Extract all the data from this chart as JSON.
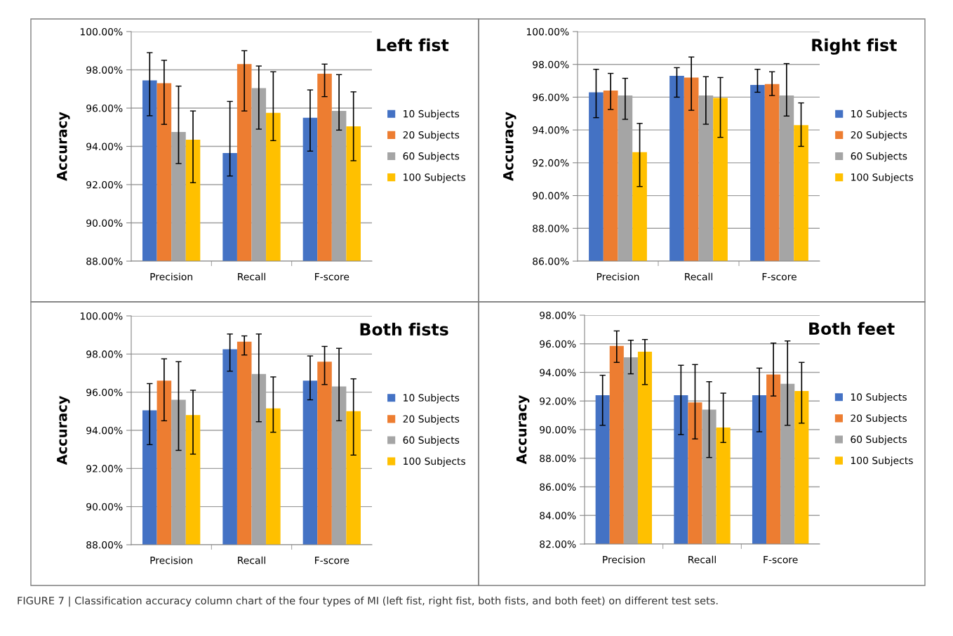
{
  "chart_data": [
    {
      "type": "bar",
      "title": "Left fist",
      "ylabel": "Accuracy",
      "categories": [
        "Precision",
        "Recall",
        "F-score"
      ],
      "ylim": [
        88,
        100
      ],
      "yticks": [
        {
          "value": 88,
          "label": "88.00%"
        },
        {
          "value": 90,
          "label": "90.00%"
        },
        {
          "value": 92,
          "label": "92.00%"
        },
        {
          "value": 94,
          "label": "94.00%"
        },
        {
          "value": 96,
          "label": "96.00%"
        },
        {
          "value": 98,
          "label": "98.00%"
        },
        {
          "value": 100,
          "label": "100.00%"
        }
      ],
      "grid": "y",
      "legend": "right",
      "series": [
        {
          "name": "10 Subjects",
          "color": "#4472c4",
          "values": [
            97.45,
            93.65,
            95.5
          ],
          "errors": [
            [
              95.6,
              98.9
            ],
            [
              92.45,
              96.35
            ],
            [
              93.75,
              96.95
            ]
          ]
        },
        {
          "name": "20 Subjects",
          "color": "#ed7d31",
          "values": [
            97.3,
            98.3,
            97.8
          ],
          "errors": [
            [
              95.15,
              98.5
            ],
            [
              95.85,
              99.0
            ],
            [
              96.6,
              98.3
            ]
          ]
        },
        {
          "name": "60 Subjects",
          "color": "#a5a5a5",
          "values": [
            94.75,
            97.05,
            95.85
          ],
          "errors": [
            [
              93.1,
              97.15
            ],
            [
              94.9,
              98.2
            ],
            [
              94.85,
              97.75
            ]
          ]
        },
        {
          "name": "100 Subjects",
          "color": "#ffc000",
          "values": [
            94.35,
            95.75,
            95.05
          ],
          "errors": [
            [
              92.1,
              95.85
            ],
            [
              94.3,
              97.9
            ],
            [
              93.25,
              96.85
            ]
          ]
        }
      ]
    },
    {
      "type": "bar",
      "title": "Right fist",
      "ylabel": "Accuracy",
      "categories": [
        "Precision",
        "Recall",
        "F-score"
      ],
      "ylim": [
        86,
        100
      ],
      "yticks": [
        {
          "value": 86,
          "label": "86.00%"
        },
        {
          "value": 88,
          "label": "88.00%"
        },
        {
          "value": 90,
          "label": "90.00%"
        },
        {
          "value": 92,
          "label": "92.00%"
        },
        {
          "value": 94,
          "label": "94.00%"
        },
        {
          "value": 96,
          "label": "96.00%"
        },
        {
          "value": 98,
          "label": "98.00%"
        },
        {
          "value": 100,
          "label": "100.00%"
        }
      ],
      "grid": "y",
      "legend": "right",
      "series": [
        {
          "name": "10 Subjects",
          "color": "#4472c4",
          "values": [
            96.3,
            97.3,
            96.75
          ],
          "errors": [
            [
              94.75,
              97.7
            ],
            [
              96.0,
              97.8
            ],
            [
              96.3,
              97.7
            ]
          ]
        },
        {
          "name": "20 Subjects",
          "color": "#ed7d31",
          "values": [
            96.4,
            97.2,
            96.8
          ],
          "errors": [
            [
              95.25,
              97.45
            ],
            [
              95.2,
              98.45
            ],
            [
              96.1,
              97.55
            ]
          ]
        },
        {
          "name": "60 Subjects",
          "color": "#a5a5a5",
          "values": [
            96.1,
            96.1,
            96.1
          ],
          "errors": [
            [
              94.65,
              97.15
            ],
            [
              94.35,
              97.25
            ],
            [
              94.85,
              98.05
            ]
          ]
        },
        {
          "name": "100 Subjects",
          "color": "#ffc000",
          "values": [
            92.65,
            95.95,
            94.3
          ],
          "errors": [
            [
              90.55,
              94.4
            ],
            [
              93.55,
              97.2
            ],
            [
              93.0,
              95.65
            ]
          ]
        }
      ]
    },
    {
      "type": "bar",
      "title": "Both fists",
      "ylabel": "Accuracy",
      "categories": [
        "Precision",
        "Recall",
        "F-score"
      ],
      "ylim": [
        88,
        100
      ],
      "yticks": [
        {
          "value": 88,
          "label": "88.00%"
        },
        {
          "value": 90,
          "label": "90.00%"
        },
        {
          "value": 92,
          "label": "92.00%"
        },
        {
          "value": 94,
          "label": "94.00%"
        },
        {
          "value": 96,
          "label": "96.00%"
        },
        {
          "value": 98,
          "label": "98.00%"
        },
        {
          "value": 100,
          "label": "100.00%"
        }
      ],
      "grid": "y",
      "legend": "right",
      "series": [
        {
          "name": "10 Subjects",
          "color": "#4472c4",
          "values": [
            95.05,
            98.25,
            96.6
          ],
          "errors": [
            [
              93.25,
              96.45
            ],
            [
              97.1,
              99.05
            ],
            [
              95.6,
              97.9
            ]
          ]
        },
        {
          "name": "20 Subjects",
          "color": "#ed7d31",
          "values": [
            96.6,
            98.65,
            97.6
          ],
          "errors": [
            [
              94.5,
              97.75
            ],
            [
              97.95,
              98.95
            ],
            [
              96.4,
              98.4
            ]
          ]
        },
        {
          "name": "60 Subjects",
          "color": "#a5a5a5",
          "values": [
            95.6,
            96.95,
            96.3
          ],
          "errors": [
            [
              92.95,
              97.6
            ],
            [
              94.45,
              99.05
            ],
            [
              94.5,
              98.3
            ]
          ]
        },
        {
          "name": "100 Subjects",
          "color": "#ffc000",
          "values": [
            94.8,
            95.15,
            95.0
          ],
          "errors": [
            [
              92.75,
              96.1
            ],
            [
              93.9,
              96.8
            ],
            [
              92.7,
              96.7
            ]
          ]
        }
      ]
    },
    {
      "type": "bar",
      "title": "Both feet",
      "ylabel": "Accuracy",
      "categories": [
        "Precision",
        "Recall",
        "F-score"
      ],
      "ylim": [
        82,
        98
      ],
      "yticks": [
        {
          "value": 82,
          "label": "82.00%"
        },
        {
          "value": 84,
          "label": "84.00%"
        },
        {
          "value": 86,
          "label": "86.00%"
        },
        {
          "value": 88,
          "label": "88.00%"
        },
        {
          "value": 90,
          "label": "90.00%"
        },
        {
          "value": 92,
          "label": "92.00%"
        },
        {
          "value": 94,
          "label": "94.00%"
        },
        {
          "value": 96,
          "label": "96.00%"
        },
        {
          "value": 98,
          "label": "98.00%"
        }
      ],
      "grid": "y",
      "legend": "right",
      "annotations": [
        "FIGURE 7 | Classification accuracy column chart of the four types of MI (left fist, right fist, both fists, and both feet) on different test sets."
      ],
      "series": [
        {
          "name": "10 Subjects",
          "color": "#4472c4",
          "values": [
            92.4,
            92.4,
            92.4
          ],
          "errors": [
            [
              90.3,
              93.8
            ],
            [
              89.65,
              94.5
            ],
            [
              89.85,
              94.3
            ]
          ]
        },
        {
          "name": "20 Subjects",
          "color": "#ed7d31",
          "values": [
            95.85,
            91.9,
            93.85
          ],
          "errors": [
            [
              94.7,
              96.9
            ],
            [
              89.35,
              94.55
            ],
            [
              92.35,
              96.05
            ]
          ]
        },
        {
          "name": "60 Subjects",
          "color": "#a5a5a5",
          "values": [
            95.05,
            91.4,
            93.2
          ],
          "errors": [
            [
              93.9,
              96.25
            ],
            [
              88.05,
              93.35
            ],
            [
              90.3,
              96.2
            ]
          ]
        },
        {
          "name": "100 Subjects",
          "color": "#ffc000",
          "values": [
            95.45,
            90.15,
            92.7
          ],
          "errors": [
            [
              93.15,
              96.3
            ],
            [
              89.1,
              92.55
            ],
            [
              90.45,
              94.7
            ]
          ]
        }
      ]
    }
  ]
}
